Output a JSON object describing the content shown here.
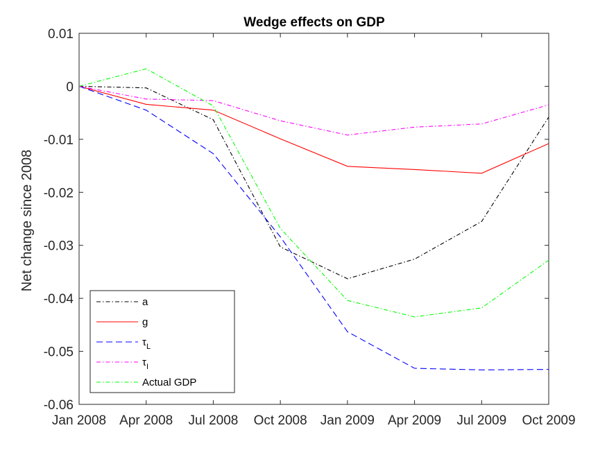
{
  "chart_data": {
    "type": "line",
    "title": "Wedge effects on GDP",
    "xlabel": "",
    "ylabel": "Net change since 2008",
    "categories": [
      "Jan 2008",
      "Apr 2008",
      "Jul 2008",
      "Oct 2008",
      "Jan 2009",
      "Apr 2009",
      "Jul 2009",
      "Oct 2009"
    ],
    "ylim": [
      -0.06,
      0.01
    ],
    "yticks": [
      "0.01",
      "0",
      "-0.01",
      "-0.02",
      "-0.03",
      "-0.04",
      "-0.05",
      "-0.06"
    ],
    "grid": false,
    "legend_position": "bottom-left",
    "series": [
      {
        "name": "a",
        "base": "a",
        "sub": "",
        "color": "#000000",
        "dash": "6,3,1.5,3",
        "values": [
          0,
          -0.0003,
          -0.0063,
          -0.0303,
          -0.0363,
          -0.0326,
          -0.0255,
          -0.0058
        ]
      },
      {
        "name": "g",
        "base": "g",
        "sub": "",
        "color": "#ff0000",
        "dash": "",
        "values": [
          0,
          -0.0034,
          -0.0045,
          -0.0099,
          -0.0151,
          -0.0157,
          -0.0164,
          -0.0108
        ]
      },
      {
        "name": "τL",
        "base": "τ",
        "sub": "L",
        "color": "#0000ff",
        "dash": "9,5",
        "values": [
          0,
          -0.0045,
          -0.0127,
          -0.0284,
          -0.0463,
          -0.0532,
          -0.0535,
          -0.0534
        ]
      },
      {
        "name": "τI",
        "base": "τ",
        "sub": "I",
        "color": "#ff00ff",
        "dash": "6,3,1.5,3",
        "values": [
          0,
          -0.0024,
          -0.0027,
          -0.0065,
          -0.0092,
          -0.0077,
          -0.0071,
          -0.0035
        ]
      },
      {
        "name": "Actual GDP",
        "base": "Actual GDP",
        "sub": "",
        "color": "#00ff00",
        "dash": "6,3,1.5,3",
        "values": [
          0,
          0.0033,
          -0.0037,
          -0.0268,
          -0.0404,
          -0.0435,
          -0.0418,
          -0.0328
        ]
      }
    ]
  }
}
